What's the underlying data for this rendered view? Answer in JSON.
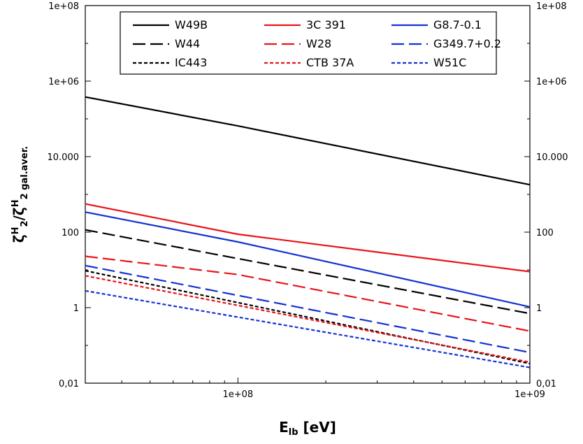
{
  "chart_data": {
    "type": "line",
    "x_scale": "log",
    "y_scale": "log",
    "xlim": [
      30000000,
      1000000000
    ],
    "ylim": [
      0.01,
      100000000
    ],
    "x_ticks": [
      {
        "value": 100000000,
        "label": "1e+08"
      },
      {
        "value": 1000000000,
        "label": "1e+09"
      }
    ],
    "y_ticks_left": [
      {
        "value": 0.01,
        "label": "0,01"
      },
      {
        "value": 1,
        "label": "1"
      },
      {
        "value": 100,
        "label": "100"
      },
      {
        "value": 10000,
        "label": "10.000"
      },
      {
        "value": 1000000,
        "label": "1e+06"
      },
      {
        "value": 100000000,
        "label": "1e+08"
      }
    ],
    "y_ticks_right": [
      {
        "value": 0.01,
        "label": "0,01"
      },
      {
        "value": 1,
        "label": "1"
      },
      {
        "value": 100,
        "label": "100"
      },
      {
        "value": 10000,
        "label": "10.000"
      },
      {
        "value": 1000000,
        "label": "1e+06"
      },
      {
        "value": 100000000,
        "label": "1e+08"
      }
    ],
    "xlabel": {
      "main": "E",
      "sub": "lb",
      "rest": " [eV]"
    },
    "ylabel": {
      "parts": [
        {
          "t": "ζ",
          "s": ""
        },
        {
          "t": "H",
          "s": "sup"
        },
        {
          "t": "2",
          "s": "sub"
        },
        {
          "t": "/ζ",
          "s": ""
        },
        {
          "t": "H",
          "s": "sup"
        },
        {
          "t": "2 gal.aver.",
          "s": "sub"
        }
      ]
    },
    "legend_position": "top",
    "grid": false,
    "series": [
      {
        "name": "W49B",
        "color": "#000000",
        "dash": "solid",
        "points": [
          [
            30000000,
            380000
          ],
          [
            100000000,
            65000
          ],
          [
            1000000000,
            1800
          ]
        ]
      },
      {
        "name": "W44",
        "color": "#000000",
        "dash": "long",
        "points": [
          [
            30000000,
            115
          ],
          [
            1000000000,
            0.7
          ]
        ]
      },
      {
        "name": "IC443",
        "color": "#000000",
        "dash": "short",
        "points": [
          [
            30000000,
            9.5
          ],
          [
            1000000000,
            0.033
          ]
        ]
      },
      {
        "name": "3C 391",
        "color": "#e8141b",
        "dash": "solid",
        "points": [
          [
            30000000,
            560
          ],
          [
            100000000,
            88
          ],
          [
            1000000000,
            9
          ]
        ]
      },
      {
        "name": "W28",
        "color": "#e8141b",
        "dash": "long",
        "points": [
          [
            30000000,
            23
          ],
          [
            100000000,
            7.5
          ],
          [
            1000000000,
            0.24
          ]
        ]
      },
      {
        "name": "CTB 37A",
        "color": "#e8141b",
        "dash": "short",
        "points": [
          [
            30000000,
            7
          ],
          [
            1000000000,
            0.036
          ]
        ]
      },
      {
        "name": "G8.7-0.1",
        "color": "#1432d2",
        "dash": "solid",
        "points": [
          [
            30000000,
            340
          ],
          [
            100000000,
            55
          ],
          [
            1000000000,
            1.05
          ]
        ]
      },
      {
        "name": "G349.7+0.2",
        "color": "#1432d2",
        "dash": "long",
        "points": [
          [
            30000000,
            13
          ],
          [
            1000000000,
            0.065
          ]
        ]
      },
      {
        "name": "W51C",
        "color": "#1432d2",
        "dash": "short",
        "points": [
          [
            30000000,
            2.8
          ],
          [
            1000000000,
            0.026
          ]
        ]
      }
    ]
  }
}
